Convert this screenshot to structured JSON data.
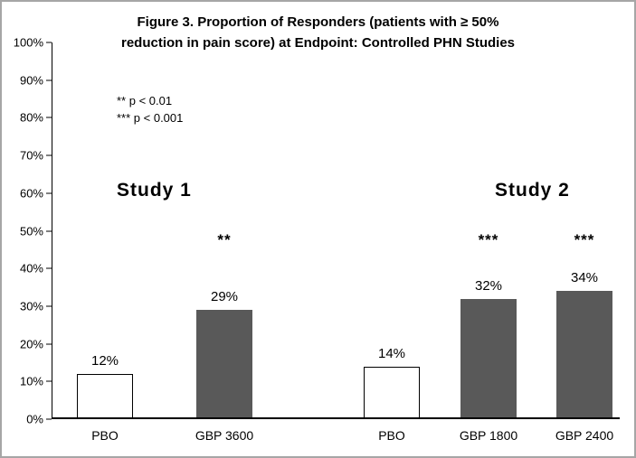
{
  "title": {
    "line1": "Figure 3. Proportion of Responders (patients with ≥ 50%",
    "line2": "reduction in pain score) at Endpoint: Controlled PHN Studies"
  },
  "footnotes": {
    "line1": "** p < 0.01",
    "line2": "*** p < 0.001"
  },
  "study_labels": {
    "study1": "Study 1",
    "study2": "Study 2"
  },
  "chart_data": {
    "type": "bar",
    "title": "Figure 3. Proportion of Responders (patients with ≥ 50% reduction in pain score) at Endpoint: Controlled PHN Studies",
    "xlabel": "",
    "ylabel": "",
    "ylim": [
      0,
      100
    ],
    "ytick_labels": [
      "100%",
      "90%",
      "80%",
      "70%",
      "60%",
      "50%",
      "40%",
      "30%",
      "20%",
      "10%",
      "0%"
    ],
    "grid": false,
    "legend_position": "none",
    "categories": [
      "PBO",
      "GBP 3600",
      "PBO",
      "GBP 1800",
      "GBP 2400"
    ],
    "values": [
      12,
      29,
      14,
      32,
      34
    ],
    "groups": [
      {
        "name": "Study 1",
        "bars": [
          "PBO",
          "GBP 3600"
        ]
      },
      {
        "name": "Study 2",
        "bars": [
          "PBO",
          "GBP 1800",
          "GBP 2400"
        ]
      }
    ],
    "bars": [
      {
        "category": "PBO",
        "study": "Study 1",
        "value": 12,
        "value_label": "12%",
        "significance": "",
        "fill": "#ffffff",
        "border": "#000000"
      },
      {
        "category": "GBP 3600",
        "study": "Study 1",
        "value": 29,
        "value_label": "29%",
        "significance": "**",
        "fill": "#595959",
        "border": "#595959"
      },
      {
        "category": "PBO",
        "study": "Study 2",
        "value": 14,
        "value_label": "14%",
        "significance": "",
        "fill": "#ffffff",
        "border": "#000000"
      },
      {
        "category": "GBP 1800",
        "study": "Study 2",
        "value": 32,
        "value_label": "32%",
        "significance": "***",
        "fill": "#595959",
        "border": "#595959"
      },
      {
        "category": "GBP 2400",
        "study": "Study 2",
        "value": 34,
        "value_label": "34%",
        "significance": "***",
        "fill": "#595959",
        "border": "#595959"
      }
    ],
    "annotations": [
      "** p < 0.01",
      "*** p < 0.001"
    ],
    "colors": {
      "pbo_fill": "#ffffff",
      "gbp_fill": "#595959",
      "bar_border": "#000000"
    }
  }
}
